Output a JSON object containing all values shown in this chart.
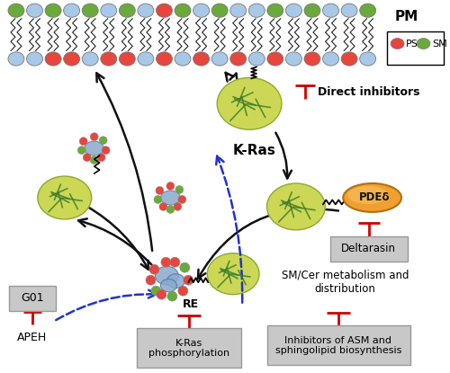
{
  "bg_color": "#ffffff",
  "pm_label": "PM",
  "ps_label": "PS",
  "sm_label": "SM",
  "direct_inhibitors_label": "Direct inhibitors",
  "kras_label": "K-Ras",
  "pdedelta_label": "PDEδ",
  "deltarasin_label": "Deltarasin",
  "sm_cer_label": "SM/Cer metabolism and\ndistribution",
  "inhibitors_asm_label": "Inhibitors of ASM and\nsphingolipid biosynthesis",
  "kras_phosphorylation_label": "K-Ras\nphosphorylation",
  "re_label": "RE",
  "g01_label": "G01",
  "apeh_label": "APEH",
  "ps_color": "#e8453c",
  "sm_color": "#6aaa3a",
  "lipid_head_blue": "#a8c8e8",
  "inhibitor_color": "#cc0000",
  "box_bg": "#c8c8c8",
  "box_edge": "#999999",
  "arrow_color": "#111111",
  "dashed_color": "#2233cc",
  "kras_yellow": "#ccd855",
  "kras_green": "#3a7a28",
  "pdedelta_color": "#f0a030",
  "re_blue": "#88aacc",
  "membrane_top_colors": [
    "#6aaa3a",
    "#a8c8e8",
    "#6aaa3a",
    "#a8c8e8",
    "#6aaa3a",
    "#a8c8e8",
    "#6aaa3a",
    "#a8c8e8",
    "#e8453c",
    "#6aaa3a",
    "#a8c8e8",
    "#6aaa3a",
    "#a8c8e8",
    "#a8c8e8",
    "#6aaa3a",
    "#a8c8e8",
    "#6aaa3a",
    "#a8c8e8",
    "#a8c8e8",
    "#6aaa3a"
  ],
  "membrane_bot_colors": [
    "#a8c8e8",
    "#a8c8e8",
    "#e8453c",
    "#e8453c",
    "#a8c8e8",
    "#e8453c",
    "#e8453c",
    "#a8c8e8",
    "#e8453c",
    "#a8c8e8",
    "#e8453c",
    "#a8c8e8",
    "#e8453c",
    "#a8c8e8",
    "#e8453c",
    "#a8c8e8",
    "#e8453c",
    "#a8c8e8",
    "#e8453c",
    "#a8c8e8"
  ]
}
